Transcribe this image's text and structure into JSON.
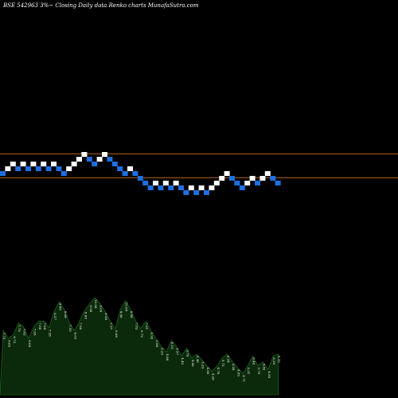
{
  "header": {
    "title": "BSE 542963 3%~  Closing Daily data  Renko  charts MunafaSutra.com"
  },
  "colors": {
    "background": "#000000",
    "up_brick": "#ffffff",
    "down_brick": "#1e6fe0",
    "reference_line": "#b5651d",
    "volume_fill": "#0b2a0b",
    "volume_edge": "#1f7a1f"
  },
  "chart_data": {
    "type": "renko",
    "title": "BSE 542963 3%~  Closing Daily data  Renko  charts MunafaSutra.com",
    "brick_size": "3%",
    "bricks": [
      {
        "level": 0,
        "dir": "down"
      },
      {
        "level": 1,
        "dir": "up"
      },
      {
        "level": 2,
        "dir": "up"
      },
      {
        "level": 1,
        "dir": "down"
      },
      {
        "level": 2,
        "dir": "up"
      },
      {
        "level": 1,
        "dir": "down"
      },
      {
        "level": 2,
        "dir": "up"
      },
      {
        "level": 1,
        "dir": "down"
      },
      {
        "level": 2,
        "dir": "up"
      },
      {
        "level": 1,
        "dir": "down"
      },
      {
        "level": 2,
        "dir": "up"
      },
      {
        "level": 1,
        "dir": "down"
      },
      {
        "level": 0,
        "dir": "down"
      },
      {
        "level": 1,
        "dir": "up"
      },
      {
        "level": 2,
        "dir": "up"
      },
      {
        "level": 3,
        "dir": "up"
      },
      {
        "level": 4,
        "dir": "up"
      },
      {
        "level": 3,
        "dir": "down"
      },
      {
        "level": 2,
        "dir": "down"
      },
      {
        "level": 3,
        "dir": "up"
      },
      {
        "level": 4,
        "dir": "up"
      },
      {
        "level": 3,
        "dir": "down"
      },
      {
        "level": 2,
        "dir": "down"
      },
      {
        "level": 1,
        "dir": "down"
      },
      {
        "level": 0,
        "dir": "down"
      },
      {
        "level": 1,
        "dir": "up"
      },
      {
        "level": 0,
        "dir": "down"
      },
      {
        "level": -1,
        "dir": "down"
      },
      {
        "level": -2,
        "dir": "down"
      },
      {
        "level": -3,
        "dir": "down"
      },
      {
        "level": -2,
        "dir": "up"
      },
      {
        "level": -3,
        "dir": "down"
      },
      {
        "level": -2,
        "dir": "up"
      },
      {
        "level": -3,
        "dir": "down"
      },
      {
        "level": -2,
        "dir": "up"
      },
      {
        "level": -3,
        "dir": "down"
      },
      {
        "level": -4,
        "dir": "down"
      },
      {
        "level": -3,
        "dir": "up"
      },
      {
        "level": -4,
        "dir": "down"
      },
      {
        "level": -3,
        "dir": "up"
      },
      {
        "level": -4,
        "dir": "down"
      },
      {
        "level": -3,
        "dir": "up"
      },
      {
        "level": -2,
        "dir": "up"
      },
      {
        "level": -1,
        "dir": "up"
      },
      {
        "level": 0,
        "dir": "up"
      },
      {
        "level": -1,
        "dir": "down"
      },
      {
        "level": -2,
        "dir": "down"
      },
      {
        "level": -3,
        "dir": "down"
      },
      {
        "level": -2,
        "dir": "up"
      },
      {
        "level": -1,
        "dir": "up"
      },
      {
        "level": -2,
        "dir": "down"
      },
      {
        "level": -1,
        "dir": "up"
      },
      {
        "level": 0,
        "dir": "up"
      },
      {
        "level": -1,
        "dir": "down"
      },
      {
        "level": -2,
        "dir": "down"
      }
    ],
    "reference_lines": [
      4.2,
      -0.8
    ],
    "volume": {
      "labels": [
        "7.73",
        "6.62",
        "6.73",
        "7.79",
        "7.63",
        "6.68",
        "7.65",
        "7.66",
        "7.69",
        "7.58",
        "8.57",
        "9.88",
        "8.69",
        "7.55",
        "6.63",
        "7.66",
        "8.68",
        "9.58",
        "10.08",
        "9.69",
        "8.58",
        "7.57",
        "6.68",
        "9.06",
        "10.08",
        "8.68",
        "7.62",
        "6.72",
        "7.61",
        "6.92",
        "5.98",
        "5.25",
        "4.86",
        "6.10",
        "5.57",
        "4.42",
        "5.76",
        "4.80",
        "5.48",
        "5.29",
        "4.80",
        "4.26",
        "4.78",
        "5.72",
        "6.24",
        "5.28",
        "4.85",
        "4.71",
        "5.31",
        "6.48",
        "5.70",
        "5.82",
        "4.85",
        "6.25",
        "6.33"
      ],
      "heights": [
        0.66,
        0.58,
        0.62,
        0.74,
        0.7,
        0.58,
        0.7,
        0.76,
        0.76,
        0.69,
        0.86,
        0.96,
        0.88,
        0.74,
        0.66,
        0.76,
        0.87,
        0.94,
        1.0,
        0.94,
        0.86,
        0.76,
        0.68,
        0.88,
        0.97,
        0.88,
        0.76,
        0.68,
        0.76,
        0.66,
        0.58,
        0.5,
        0.44,
        0.56,
        0.5,
        0.4,
        0.48,
        0.38,
        0.42,
        0.36,
        0.3,
        0.24,
        0.3,
        0.38,
        0.42,
        0.34,
        0.28,
        0.22,
        0.3,
        0.4,
        0.3,
        0.34,
        0.26,
        0.4,
        0.42
      ]
    }
  }
}
